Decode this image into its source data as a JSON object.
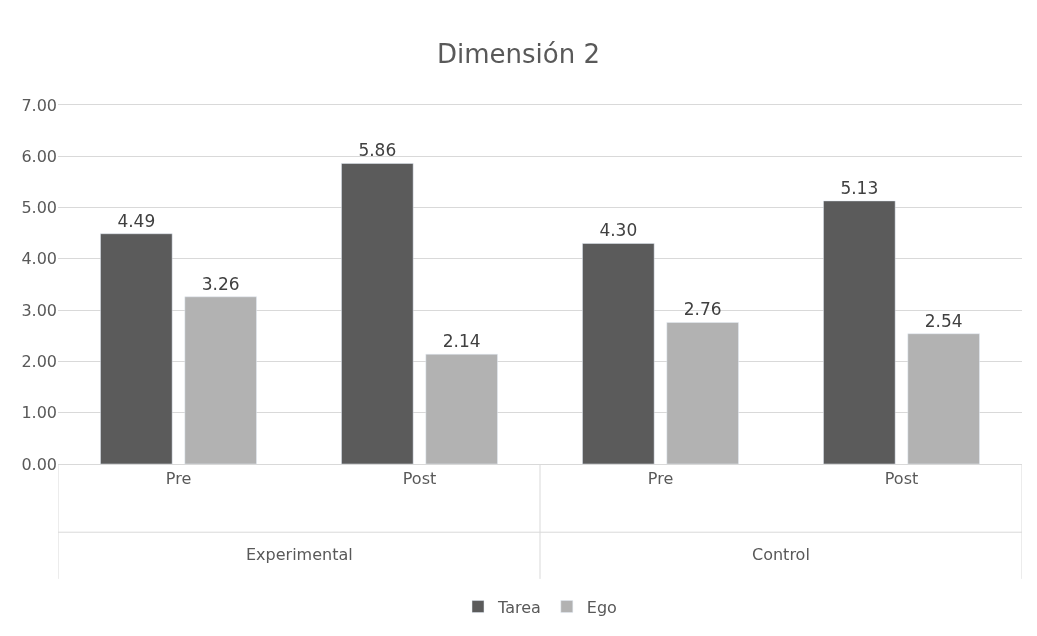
{
  "chart_data": {
    "type": "bar",
    "title": "Dimensión 2",
    "categories": [
      "Pre",
      "Post",
      "Pre",
      "Post"
    ],
    "series": [
      {
        "name": "Tarea",
        "color": "#5b5b5b",
        "values": [
          4.49,
          5.86,
          4.3,
          5.13
        ],
        "value_labels": [
          "4.49",
          "5.86",
          "4.30",
          "5.13"
        ]
      },
      {
        "name": "Ego",
        "color": "#b2b2b2",
        "values": [
          3.26,
          2.14,
          2.76,
          2.54
        ],
        "value_labels": [
          "3.26",
          "2.14",
          "2.76",
          "2.54"
        ]
      }
    ],
    "annotations": [
      "Experimental",
      "Control"
    ],
    "ylim": [
      0,
      7
    ],
    "yticks": [
      {
        "value": 0,
        "label": "0.00"
      },
      {
        "value": 1,
        "label": "1.00"
      },
      {
        "value": 2,
        "label": "2.00"
      },
      {
        "value": 3,
        "label": "3.00"
      },
      {
        "value": 4,
        "label": "4.00"
      },
      {
        "value": 5,
        "label": "5.00"
      },
      {
        "value": 6,
        "label": "6.00"
      },
      {
        "value": 7,
        "label": "7.00"
      }
    ],
    "grid": "y",
    "legend": "bottom"
  }
}
